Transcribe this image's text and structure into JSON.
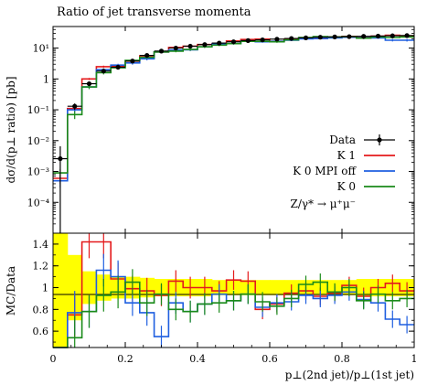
{
  "chart_data": [
    {
      "type": "line",
      "title": "Ratio of jet transverse momenta",
      "ylabel": "dσ/d(p⊥ ratio) [pb]",
      "yscale": "log",
      "xlim": [
        0,
        1
      ],
      "ylim": [
        1e-05,
        50
      ],
      "y_ticks": [
        {
          "value": 10,
          "label": "10¹"
        },
        {
          "value": 1,
          "label": "1"
        },
        {
          "value": 0.1,
          "label": "10⁻¹"
        },
        {
          "value": 0.01,
          "label": "10⁻²"
        },
        {
          "value": 0.001,
          "label": "10⁻³"
        },
        {
          "value": 0.0001,
          "label": "10⁻⁴"
        }
      ],
      "legend_position": "right",
      "annotation": "Z/γ* → μ⁺μ⁻",
      "x_edges": [
        0,
        0.04,
        0.08,
        0.12,
        0.16,
        0.2,
        0.24,
        0.28,
        0.32,
        0.36,
        0.4,
        0.44,
        0.48,
        0.52,
        0.56,
        0.6,
        0.64,
        0.68,
        0.72,
        0.76,
        0.8,
        0.84,
        0.88,
        0.92,
        0.96,
        1.0
      ],
      "data": {
        "name": "Data",
        "color": "#000000",
        "x": [
          0.02,
          0.06,
          0.1,
          0.14,
          0.18,
          0.22,
          0.26,
          0.3,
          0.34,
          0.38,
          0.42,
          0.46,
          0.5,
          0.54,
          0.58,
          0.62,
          0.66,
          0.7,
          0.74,
          0.78,
          0.82,
          0.86,
          0.9,
          0.94,
          0.98
        ],
        "y": [
          0.0026,
          0.13,
          0.7,
          1.8,
          2.4,
          3.8,
          5.8,
          8.0,
          10.0,
          11.5,
          13.0,
          14.5,
          16.0,
          17.5,
          18.5,
          19.5,
          20.5,
          21.5,
          22.5,
          23.0,
          23.5,
          24.0,
          24.5,
          25.0,
          25.5
        ],
        "err_lo": [
          0.0026,
          0.03,
          0.08,
          0.15,
          0.2,
          0.3,
          0.4,
          0.5,
          0.6,
          0.6,
          0.7,
          0.7,
          0.7,
          0.8,
          0.8,
          0.8,
          0.8,
          0.9,
          0.9,
          0.9,
          0.9,
          0.9,
          0.9,
          0.9,
          0.9
        ],
        "err_hi": [
          0.004,
          0.03,
          0.08,
          0.15,
          0.2,
          0.3,
          0.4,
          0.5,
          0.6,
          0.6,
          0.7,
          0.7,
          0.7,
          0.8,
          0.8,
          0.8,
          0.8,
          0.9,
          0.9,
          0.9,
          0.9,
          0.9,
          0.9,
          0.9,
          0.9
        ]
      },
      "series": [
        {
          "name": "K 1",
          "color": "#e41a1c",
          "values": [
            0.0006,
            0.11,
            1.0,
            2.5,
            2.6,
            3.8,
            5.6,
            7.5,
            10.5,
            11.5,
            13.0,
            14.0,
            17.0,
            19.0,
            19.5,
            16.5,
            19.5,
            21.0,
            20.5,
            22.0,
            24.0,
            22.0,
            24.5,
            26.0,
            25.0
          ],
          "err": [
            0.0002,
            0.02,
            0.08,
            0.2,
            0.3,
            0.4,
            0.5,
            0.6,
            0.7,
            0.8,
            0.9,
            0.9,
            1.0,
            1.1,
            1.1,
            1.2,
            1.2,
            1.3,
            1.3,
            1.4,
            1.5,
            1.5,
            1.6,
            1.6,
            1.7
          ]
        },
        {
          "name": "K 0 MPI off",
          "color": "#1f5fe0",
          "values": [
            0.0005,
            0.1,
            0.55,
            2.0,
            2.8,
            3.3,
            4.5,
            7.5,
            8.6,
            8.8,
            11.0,
            13.5,
            14.0,
            17.0,
            16.0,
            16.5,
            18.0,
            20.0,
            20.5,
            21.5,
            22.5,
            21.5,
            21.5,
            18.0,
            18.0
          ],
          "err": [
            0.0002,
            0.02,
            0.08,
            0.2,
            0.3,
            0.4,
            0.5,
            0.6,
            0.7,
            0.8,
            0.9,
            0.9,
            1.0,
            1.1,
            1.1,
            1.2,
            1.2,
            1.3,
            1.3,
            1.4,
            1.5,
            1.5,
            1.6,
            1.6,
            1.7
          ]
        },
        {
          "name": "K 0",
          "color": "#1a8a1a",
          "values": [
            0.0009,
            0.07,
            0.55,
            1.6,
            2.3,
            4.0,
            5.0,
            7.5,
            8.0,
            9.0,
            11.0,
            12.5,
            14.0,
            16.5,
            16.5,
            16.0,
            18.5,
            22.0,
            23.5,
            23.0,
            23.5,
            21.0,
            23.0,
            22.0,
            23.0
          ],
          "err": [
            0.0003,
            0.02,
            0.08,
            0.2,
            0.3,
            0.4,
            0.5,
            0.6,
            0.7,
            0.8,
            0.9,
            0.9,
            1.0,
            1.1,
            1.1,
            1.2,
            1.2,
            1.3,
            1.3,
            1.4,
            1.5,
            1.5,
            1.6,
            1.6,
            1.7
          ]
        }
      ]
    },
    {
      "type": "line",
      "ylabel": "MC/Data",
      "xlabel": "p⊥(2nd jet)/p⊥(1st jet)",
      "xlim": [
        0,
        1
      ],
      "ylim": [
        0.45,
        1.5
      ],
      "x_ticks": [
        0,
        0.2,
        0.4,
        0.6,
        0.8,
        1
      ],
      "x_tick_labels": [
        "0",
        "0.2",
        "0.4",
        "0.6",
        "0.8",
        "1"
      ],
      "y_ticks": [
        0.6,
        0.8,
        1,
        1.2,
        1.4
      ],
      "y_tick_labels": [
        "0.6",
        "0.8",
        "1",
        "1.2",
        "1.4"
      ],
      "band_color": "#ffff00",
      "band_halfwidth": [
        1.0,
        0.3,
        0.15,
        0.12,
        0.1,
        0.1,
        0.09,
        0.08,
        0.08,
        0.08,
        0.08,
        0.07,
        0.07,
        0.07,
        0.07,
        0.07,
        0.07,
        0.07,
        0.07,
        0.07,
        0.07,
        0.08,
        0.08,
        0.08,
        0.08
      ],
      "series": [
        {
          "name": "K 1",
          "color": "#e41a1c",
          "values": [
            0.23,
            0.75,
            1.42,
            1.42,
            1.08,
            0.99,
            0.97,
            0.93,
            1.06,
            1.0,
            1.0,
            0.97,
            1.07,
            1.06,
            0.8,
            0.85,
            0.95,
            0.97,
            0.92,
            0.95,
            1.02,
            0.92,
            1.0,
            1.04,
            0.97
          ],
          "err": [
            0.1,
            0.2,
            0.15,
            0.15,
            0.15,
            0.12,
            0.12,
            0.1,
            0.1,
            0.1,
            0.1,
            0.09,
            0.09,
            0.09,
            0.09,
            0.08,
            0.08,
            0.08,
            0.08,
            0.08,
            0.08,
            0.08,
            0.08,
            0.08,
            0.08
          ]
        },
        {
          "name": "K 0 MPI off",
          "color": "#1f5fe0",
          "values": [
            0.2,
            0.77,
            0.78,
            1.16,
            1.1,
            0.86,
            0.77,
            0.55,
            0.86,
            0.78,
            0.85,
            0.94,
            0.88,
            0.94,
            0.82,
            0.86,
            0.87,
            0.93,
            0.9,
            0.93,
            0.96,
            0.89,
            0.86,
            0.71,
            0.66
          ],
          "err": [
            0.1,
            0.2,
            0.15,
            0.15,
            0.15,
            0.12,
            0.12,
            0.1,
            0.1,
            0.1,
            0.1,
            0.09,
            0.09,
            0.09,
            0.09,
            0.08,
            0.08,
            0.08,
            0.08,
            0.08,
            0.08,
            0.08,
            0.08,
            0.08,
            0.08
          ]
        },
        {
          "name": "K 0",
          "color": "#1a8a1a",
          "values": [
            0.35,
            0.54,
            0.78,
            0.93,
            0.96,
            1.05,
            0.86,
            0.94,
            0.8,
            0.78,
            0.85,
            0.86,
            0.88,
            0.94,
            0.87,
            0.83,
            0.9,
            1.03,
            1.05,
            0.96,
            1.0,
            0.88,
            0.94,
            0.88,
            0.9
          ],
          "err": [
            0.1,
            0.2,
            0.15,
            0.15,
            0.15,
            0.12,
            0.12,
            0.1,
            0.1,
            0.1,
            0.1,
            0.09,
            0.09,
            0.09,
            0.09,
            0.08,
            0.08,
            0.08,
            0.08,
            0.08,
            0.08,
            0.08,
            0.08,
            0.08,
            0.08
          ]
        }
      ]
    }
  ]
}
